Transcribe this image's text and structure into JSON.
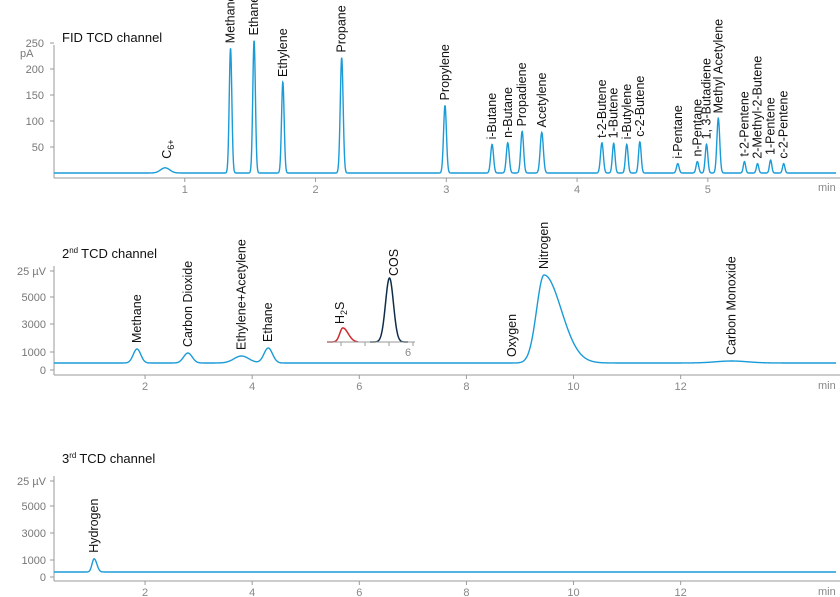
{
  "colors": {
    "trace": "#1a9bd7",
    "h2s_trace": "#d0282e",
    "cos_trace": "#0f2d4a",
    "axis": "#9a9a9a"
  },
  "chart_data": [
    {
      "type": "line",
      "title": "FID TCD channel",
      "yunit": "pA",
      "xunit": "min",
      "ylim": [
        0,
        260
      ],
      "yticks": [
        50,
        100,
        150,
        200,
        250
      ],
      "xlim": [
        0,
        5.98
      ],
      "xticks": [
        1,
        2,
        3,
        4,
        5
      ],
      "peaks": [
        {
          "rt": 0.85,
          "height": 10,
          "width": 0.035,
          "label": "C6+"
        },
        {
          "rt": 1.35,
          "height": 240,
          "width": 0.01,
          "label": "Methane"
        },
        {
          "rt": 1.53,
          "height": 255,
          "width": 0.01,
          "label": "Ethane"
        },
        {
          "rt": 1.75,
          "height": 175,
          "width": 0.01,
          "label": "Ethylene"
        },
        {
          "rt": 2.2,
          "height": 222,
          "width": 0.011,
          "label": "Propane"
        },
        {
          "rt": 2.99,
          "height": 130,
          "width": 0.011,
          "label": "Propylene"
        },
        {
          "rt": 3.35,
          "height": 55,
          "width": 0.011,
          "label": "i-Butane"
        },
        {
          "rt": 3.47,
          "height": 58,
          "width": 0.011,
          "label": "n-Butane"
        },
        {
          "rt": 3.58,
          "height": 80,
          "width": 0.011,
          "label": "Propadiene"
        },
        {
          "rt": 3.73,
          "height": 78,
          "width": 0.012,
          "label": "Acetylene"
        },
        {
          "rt": 4.19,
          "height": 58,
          "width": 0.011,
          "label": "t-2-Butene"
        },
        {
          "rt": 4.28,
          "height": 57,
          "width": 0.01,
          "label": "1-Butene"
        },
        {
          "rt": 4.38,
          "height": 55,
          "width": 0.01,
          "label": "i-Butylene"
        },
        {
          "rt": 4.48,
          "height": 60,
          "width": 0.01,
          "label": "c-2-Butene"
        },
        {
          "rt": 4.77,
          "height": 18,
          "width": 0.01,
          "label": "i-Pentane"
        },
        {
          "rt": 4.92,
          "height": 22,
          "width": 0.01,
          "label": "n-Pentane"
        },
        {
          "rt": 4.99,
          "height": 55,
          "width": 0.01,
          "label": "1, 3-Butadiene"
        },
        {
          "rt": 5.08,
          "height": 105,
          "width": 0.011,
          "label": "Methyl Acetylene"
        },
        {
          "rt": 5.28,
          "height": 22,
          "width": 0.009,
          "label": "t-2-Pentene"
        },
        {
          "rt": 5.38,
          "height": 18,
          "width": 0.009,
          "label": "2-Methyl-2-Butene"
        },
        {
          "rt": 5.48,
          "height": 25,
          "width": 0.009,
          "label": "1-Pentene"
        },
        {
          "rt": 5.58,
          "height": 18,
          "width": 0.009,
          "label": "c-2-Pentene"
        }
      ]
    },
    {
      "type": "line",
      "title": "TCD channel",
      "title_prefix": "2",
      "title_sup": "nd",
      "ytick_labels": [
        "25 µV",
        "5000",
        "3000",
        "1000",
        "0"
      ],
      "xunit": "min",
      "xlim": [
        0.3,
        14.9
      ],
      "xticks": [
        2,
        4,
        6,
        8,
        10,
        12
      ],
      "peaks": [
        {
          "rt": 1.85,
          "height": 0.14,
          "width": 0.07,
          "label": "Methane"
        },
        {
          "rt": 2.8,
          "height": 0.1,
          "width": 0.08,
          "label": "Carbon Dioxide"
        },
        {
          "rt": 3.8,
          "height": 0.07,
          "width": 0.14,
          "label": "Ethylene+Acetylene"
        },
        {
          "rt": 4.3,
          "height": 0.15,
          "width": 0.08,
          "label": "Ethane"
        },
        {
          "rt": 8.85,
          "height": 0.0,
          "width": 0.1,
          "label": "Oxygen"
        },
        {
          "rt": 9.45,
          "height": 0.88,
          "width": 0.14,
          "tail": 0.32,
          "label": "Nitrogen"
        },
        {
          "rt": 12.95,
          "height": 0.02,
          "width": 0.3,
          "label": "Carbon Monoxide"
        }
      ],
      "inset": {
        "xtick": "6",
        "peaks": [
          {
            "label_main": "H",
            "label_sub": "2",
            "label_tail": "S",
            "rt": 0.18,
            "height": 0.22,
            "width": 0.035,
            "tail": 0.06
          },
          {
            "label": "COS",
            "rt": 0.71,
            "height": 1.0,
            "width": 0.045
          }
        ]
      }
    },
    {
      "type": "line",
      "title": "TCD channel",
      "title_prefix": "3",
      "title_sup": "rd",
      "ytick_labels": [
        "25 µV",
        "5000",
        "3000",
        "1000",
        "0"
      ],
      "xunit": "min",
      "xlim": [
        0.3,
        14.9
      ],
      "xticks": [
        2,
        4,
        6,
        8,
        10,
        12
      ],
      "peaks": [
        {
          "rt": 1.05,
          "height": 0.12,
          "width": 0.04,
          "tail": 0.05,
          "label": "Hydrogen"
        }
      ]
    }
  ]
}
